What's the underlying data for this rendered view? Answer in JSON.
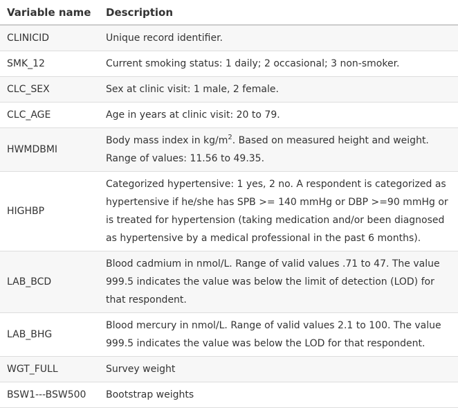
{
  "table": {
    "headers": {
      "variable": "Variable name",
      "description": "Description"
    },
    "rows": [
      {
        "variable": "CLINICID",
        "description": "Unique record identifier."
      },
      {
        "variable": "SMK_12",
        "description": "Current smoking status: 1 daily; 2 occasional; 3 non-smoker."
      },
      {
        "variable": "CLC_SEX",
        "description": "Sex at clinic visit: 1 male, 2 female."
      },
      {
        "variable": "CLC_AGE",
        "description": "Age in years at clinic visit: 20 to 79."
      },
      {
        "variable": "HWMDBMI",
        "description_pre": "Body mass index in kg/m",
        "description_sup": "2",
        "description_post": ". Based on measured height and weight. Range of values: 11.56 to 49.35."
      },
      {
        "variable": "HIGHBP",
        "description": "Categorized hypertensive: 1 yes, 2 no.  A respondent is categorized as hypertensive if he/she has SPB >= 140 mmHg or DBP >=90 mmHg or is treated for hypertension (taking medication and/or been diagnosed as hypertensive by a medical professional in the past 6 months)."
      },
      {
        "variable": "LAB_BCD",
        "description": "Blood cadmium in nmol/L.  Range of valid values .71 to 47.  The value 999.5 indicates the value was below the limit of detection (LOD) for that respondent."
      },
      {
        "variable": "LAB_BHG",
        "description": "Blood mercury in nmol/L. Range of valid values 2.1 to 100.  The value 999.5 indicates the value was below the LOD for that respondent."
      },
      {
        "variable": "WGT_FULL",
        "description": "Survey weight"
      },
      {
        "variable": "BSW1---BSW500",
        "description": "Bootstrap weights"
      }
    ]
  }
}
